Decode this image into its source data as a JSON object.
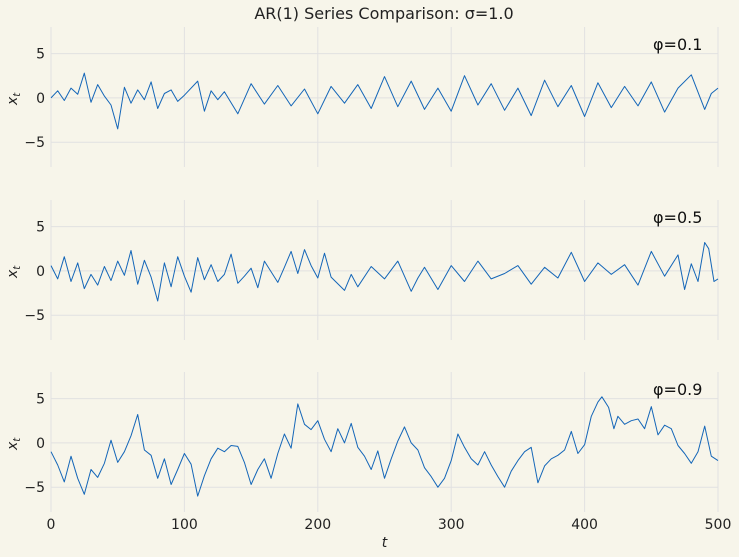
{
  "figure": {
    "title": "AR(1) Series Comparison: σ=1.0",
    "background": "#f7f5ea"
  },
  "chart_data": {
    "type": "line",
    "title": "AR(1) Series Comparison: σ=1.0",
    "xlabel": "t",
    "ylabel": "x_t",
    "xlim": [
      0,
      500
    ],
    "ylim": [
      -7.8,
      8
    ],
    "xticks": [
      0,
      100,
      200,
      300,
      400,
      500
    ],
    "yticks": [
      -5,
      0,
      5
    ],
    "grid": true,
    "line_color": "#1466b8",
    "panels": [
      {
        "annotation": "φ=0.1",
        "phi": 0.1,
        "y_approx_range": [
          -3.5,
          2.8
        ],
        "points": [
          [
            0,
            0.0
          ],
          [
            5,
            0.8
          ],
          [
            10,
            -0.3
          ],
          [
            15,
            1.1
          ],
          [
            20,
            0.4
          ],
          [
            25,
            2.8
          ],
          [
            30,
            -0.5
          ],
          [
            35,
            1.5
          ],
          [
            40,
            0.2
          ],
          [
            45,
            -0.8
          ],
          [
            50,
            -3.5
          ],
          [
            55,
            1.2
          ],
          [
            60,
            -0.6
          ],
          [
            65,
            0.9
          ],
          [
            70,
            -0.2
          ],
          [
            75,
            1.8
          ],
          [
            80,
            -1.2
          ],
          [
            85,
            0.5
          ],
          [
            90,
            0.9
          ],
          [
            95,
            -0.4
          ],
          [
            100,
            0.3
          ],
          [
            110,
            1.9
          ],
          [
            115,
            -1.5
          ],
          [
            120,
            0.8
          ],
          [
            125,
            -0.2
          ],
          [
            130,
            0.7
          ],
          [
            140,
            -1.8
          ],
          [
            150,
            1.6
          ],
          [
            160,
            -0.7
          ],
          [
            170,
            1.4
          ],
          [
            180,
            -0.9
          ],
          [
            190,
            1.0
          ],
          [
            200,
            -1.8
          ],
          [
            210,
            1.3
          ],
          [
            220,
            -0.6
          ],
          [
            230,
            1.5
          ],
          [
            240,
            -1.2
          ],
          [
            250,
            2.4
          ],
          [
            260,
            -1.0
          ],
          [
            270,
            1.9
          ],
          [
            280,
            -1.3
          ],
          [
            290,
            1.1
          ],
          [
            300,
            -1.5
          ],
          [
            310,
            2.5
          ],
          [
            320,
            -0.8
          ],
          [
            330,
            1.6
          ],
          [
            340,
            -1.4
          ],
          [
            350,
            1.1
          ],
          [
            360,
            -2.0
          ],
          [
            370,
            2.0
          ],
          [
            380,
            -1.0
          ],
          [
            390,
            1.4
          ],
          [
            400,
            -2.1
          ],
          [
            410,
            1.7
          ],
          [
            420,
            -1.1
          ],
          [
            430,
            1.3
          ],
          [
            440,
            -0.9
          ],
          [
            450,
            1.8
          ],
          [
            460,
            -1.6
          ],
          [
            470,
            1.1
          ],
          [
            480,
            2.6
          ],
          [
            490,
            -1.3
          ],
          [
            495,
            0.5
          ],
          [
            500,
            1.1
          ]
        ]
      },
      {
        "annotation": "φ=0.5",
        "phi": 0.5,
        "y_approx_range": [
          -3.5,
          3.2
        ],
        "points": [
          [
            0,
            0.6
          ],
          [
            5,
            -0.9
          ],
          [
            10,
            1.6
          ],
          [
            15,
            -1.2
          ],
          [
            20,
            0.9
          ],
          [
            25,
            -2.0
          ],
          [
            30,
            -0.4
          ],
          [
            35,
            -1.6
          ],
          [
            40,
            0.5
          ],
          [
            45,
            -1.1
          ],
          [
            50,
            1.1
          ],
          [
            55,
            -0.5
          ],
          [
            60,
            2.3
          ],
          [
            65,
            -1.5
          ],
          [
            70,
            1.2
          ],
          [
            75,
            -0.7
          ],
          [
            80,
            -3.4
          ],
          [
            85,
            0.9
          ],
          [
            90,
            -1.8
          ],
          [
            95,
            1.6
          ],
          [
            100,
            -0.6
          ],
          [
            105,
            -2.4
          ],
          [
            110,
            1.5
          ],
          [
            115,
            -1.0
          ],
          [
            120,
            0.7
          ],
          [
            125,
            -1.2
          ],
          [
            130,
            -0.4
          ],
          [
            135,
            1.9
          ],
          [
            140,
            -1.4
          ],
          [
            145,
            -0.6
          ],
          [
            150,
            0.3
          ],
          [
            155,
            -1.9
          ],
          [
            160,
            1.1
          ],
          [
            170,
            -1.3
          ],
          [
            175,
            0.4
          ],
          [
            180,
            2.2
          ],
          [
            185,
            -0.3
          ],
          [
            190,
            2.4
          ],
          [
            195,
            0.6
          ],
          [
            200,
            -0.8
          ],
          [
            205,
            2.0
          ],
          [
            210,
            -0.7
          ],
          [
            220,
            -2.2
          ],
          [
            225,
            -0.4
          ],
          [
            230,
            -1.8
          ],
          [
            240,
            0.5
          ],
          [
            250,
            -0.9
          ],
          [
            260,
            1.1
          ],
          [
            270,
            -2.3
          ],
          [
            275,
            -0.8
          ],
          [
            280,
            0.4
          ],
          [
            290,
            -2.1
          ],
          [
            300,
            0.6
          ],
          [
            310,
            -1.2
          ],
          [
            320,
            1.1
          ],
          [
            330,
            -0.9
          ],
          [
            340,
            -0.3
          ],
          [
            350,
            0.6
          ],
          [
            360,
            -1.5
          ],
          [
            370,
            0.4
          ],
          [
            380,
            -0.8
          ],
          [
            390,
            2.1
          ],
          [
            400,
            -1.2
          ],
          [
            410,
            0.9
          ],
          [
            420,
            -0.4
          ],
          [
            430,
            0.7
          ],
          [
            440,
            -1.6
          ],
          [
            450,
            2.2
          ],
          [
            460,
            -0.6
          ],
          [
            470,
            1.8
          ],
          [
            475,
            -2.1
          ],
          [
            480,
            0.8
          ],
          [
            485,
            -1.2
          ],
          [
            490,
            3.2
          ],
          [
            493,
            2.5
          ],
          [
            497,
            -1.2
          ],
          [
            500,
            -0.9
          ]
        ]
      },
      {
        "annotation": "φ=0.9",
        "phi": 0.9,
        "y_approx_range": [
          -6.0,
          5.2
        ],
        "points": [
          [
            0,
            -1.0
          ],
          [
            5,
            -2.5
          ],
          [
            10,
            -4.4
          ],
          [
            15,
            -1.5
          ],
          [
            20,
            -4.0
          ],
          [
            25,
            -5.8
          ],
          [
            30,
            -3.0
          ],
          [
            35,
            -3.9
          ],
          [
            40,
            -2.3
          ],
          [
            45,
            0.3
          ],
          [
            50,
            -2.2
          ],
          [
            55,
            -1.0
          ],
          [
            60,
            0.8
          ],
          [
            65,
            3.2
          ],
          [
            70,
            -0.8
          ],
          [
            75,
            -1.4
          ],
          [
            80,
            -4.0
          ],
          [
            85,
            -1.8
          ],
          [
            90,
            -4.7
          ],
          [
            95,
            -3.0
          ],
          [
            100,
            -1.2
          ],
          [
            105,
            -2.4
          ],
          [
            110,
            -6.0
          ],
          [
            115,
            -3.7
          ],
          [
            120,
            -1.8
          ],
          [
            125,
            -0.6
          ],
          [
            130,
            -1.0
          ],
          [
            135,
            -0.3
          ],
          [
            140,
            -0.4
          ],
          [
            145,
            -2.2
          ],
          [
            150,
            -4.7
          ],
          [
            155,
            -3.0
          ],
          [
            160,
            -1.8
          ],
          [
            165,
            -4.0
          ],
          [
            170,
            -1.2
          ],
          [
            175,
            1.0
          ],
          [
            180,
            -0.6
          ],
          [
            185,
            4.4
          ],
          [
            190,
            2.1
          ],
          [
            195,
            1.5
          ],
          [
            200,
            2.5
          ],
          [
            205,
            0.4
          ],
          [
            210,
            -1.0
          ],
          [
            215,
            1.6
          ],
          [
            220,
            0.0
          ],
          [
            225,
            2.2
          ],
          [
            230,
            -0.5
          ],
          [
            235,
            -1.5
          ],
          [
            240,
            -3.0
          ],
          [
            245,
            -0.9
          ],
          [
            250,
            -4.0
          ],
          [
            255,
            -1.8
          ],
          [
            260,
            0.2
          ],
          [
            265,
            1.8
          ],
          [
            270,
            0.0
          ],
          [
            275,
            -0.8
          ],
          [
            280,
            -2.8
          ],
          [
            285,
            -3.8
          ],
          [
            290,
            -5.0
          ],
          [
            295,
            -4.0
          ],
          [
            300,
            -2.0
          ],
          [
            305,
            1.0
          ],
          [
            310,
            -0.5
          ],
          [
            315,
            -1.8
          ],
          [
            320,
            -2.5
          ],
          [
            325,
            -1.0
          ],
          [
            330,
            -2.5
          ],
          [
            335,
            -3.8
          ],
          [
            340,
            -5.0
          ],
          [
            345,
            -3.2
          ],
          [
            350,
            -2.0
          ],
          [
            355,
            -1.0
          ],
          [
            360,
            -0.5
          ],
          [
            365,
            -4.5
          ],
          [
            370,
            -2.6
          ],
          [
            375,
            -1.8
          ],
          [
            380,
            -1.4
          ],
          [
            385,
            -0.8
          ],
          [
            390,
            1.3
          ],
          [
            395,
            -1.2
          ],
          [
            400,
            -0.2
          ],
          [
            405,
            3.0
          ],
          [
            410,
            4.6
          ],
          [
            413,
            5.2
          ],
          [
            418,
            4.0
          ],
          [
            422,
            1.6
          ],
          [
            425,
            3.0
          ],
          [
            430,
            2.1
          ],
          [
            435,
            2.5
          ],
          [
            440,
            2.7
          ],
          [
            445,
            1.6
          ],
          [
            450,
            4.1
          ],
          [
            455,
            0.9
          ],
          [
            460,
            2.0
          ],
          [
            465,
            1.6
          ],
          [
            470,
            -0.3
          ],
          [
            475,
            -1.2
          ],
          [
            480,
            -2.3
          ],
          [
            485,
            -1.0
          ],
          [
            490,
            1.9
          ],
          [
            495,
            -1.5
          ],
          [
            500,
            -2.0
          ]
        ]
      }
    ]
  }
}
